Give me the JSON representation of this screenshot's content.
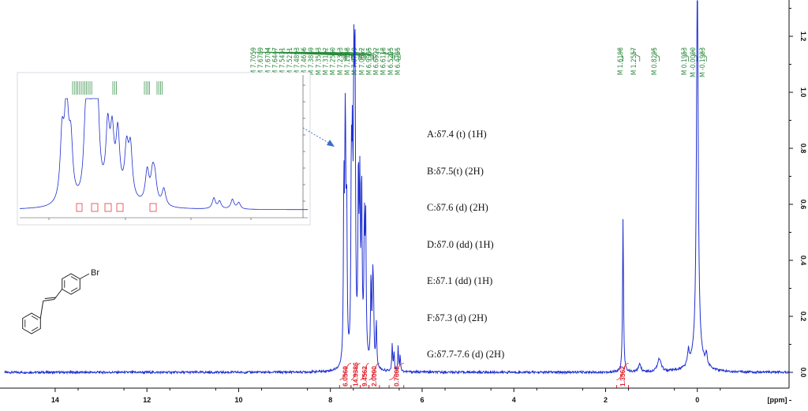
{
  "chart_data": {
    "type": "line",
    "x_unit_label": "[ppm]",
    "x_ticks": [
      "14",
      "12",
      "10",
      "8",
      "6",
      "4",
      "2",
      "0"
    ],
    "x_ticks_values": [
      14,
      12,
      10,
      8,
      6,
      4,
      2,
      0
    ],
    "xlim": [
      15.1,
      -2.0
    ],
    "y_ticks": [
      "1.2",
      "1.0",
      "0.8",
      "0.6",
      "0.4",
      "0.2",
      "0.0"
    ],
    "y_ticks_values": [
      1.2,
      1.0,
      0.8,
      0.6,
      0.4,
      0.2,
      0.0
    ],
    "ylim": [
      -0.06,
      1.3
    ],
    "peak_labels_aromatic": [
      {
        "text": "M 7.7059",
        "ppm": 7.7059
      },
      {
        "text": "M 7.6789",
        "ppm": 7.6789
      },
      {
        "text": "M 7.6704",
        "ppm": 7.6704
      },
      {
        "text": "M 7.6447",
        "ppm": 7.6447
      },
      {
        "text": "M 7.5431",
        "ppm": 7.5431
      },
      {
        "text": "M 7.5211",
        "ppm": 7.5211
      },
      {
        "text": "M 7.4893",
        "ppm": 7.4893
      },
      {
        "text": "M 7.4636",
        "ppm": 7.4636
      },
      {
        "text": "M 7.3889",
        "ppm": 7.3889
      },
      {
        "text": "M 7.3583",
        "ppm": 7.3583
      },
      {
        "text": "M 7.3192",
        "ppm": 7.3192
      },
      {
        "text": "M 7.2580",
        "ppm": 7.258
      },
      {
        "text": "M 7.2313",
        "ppm": 7.2313
      },
      {
        "text": "M 7.1148",
        "ppm": 7.1148
      },
      {
        "text": "M 7.0769",
        "ppm": 7.0769
      },
      {
        "text": "M 7.0612",
        "ppm": 7.0612
      },
      {
        "text": "M 6.9985",
        "ppm": 6.9985
      },
      {
        "text": "M 6.6522",
        "ppm": 6.6522
      },
      {
        "text": "M 6.6118",
        "ppm": 6.6118
      },
      {
        "text": "M 6.5225",
        "ppm": 6.5225
      },
      {
        "text": "M 6.4785",
        "ppm": 6.4785
      }
    ],
    "peak_labels_aliphatic": [
      {
        "text": "M 1.6198",
        "ppm": 1.6198
      },
      {
        "text": "M 1.2557",
        "ppm": 1.2557
      },
      {
        "text": "M 0.8295",
        "ppm": 0.8295
      },
      {
        "text": "M 0.1953",
        "ppm": 0.1953
      },
      {
        "text": "M -0.0000",
        "ppm": 0.0
      },
      {
        "text": "M -0.1983",
        "ppm": -0.1983
      }
    ],
    "integrals": [
      {
        "text": "6.0569",
        "from": 7.8,
        "to": 7.55
      },
      {
        "text": "14.9386",
        "from": 7.55,
        "to": 7.35
      },
      {
        "text": "9.4562",
        "from": 7.35,
        "to": 7.16
      },
      {
        "text": "2.0000",
        "from": 7.16,
        "to": 6.93
      },
      {
        "text": "0.7602",
        "from": 6.72,
        "to": 6.4
      },
      {
        "text": "1.3562",
        "from": 1.76,
        "to": 1.5
      }
    ],
    "spectrum_peaks": [
      {
        "ppm": 7.706,
        "h": 0.6,
        "w": 0.012
      },
      {
        "ppm": 7.679,
        "h": 0.54,
        "w": 0.012
      },
      {
        "ppm": 7.67,
        "h": 0.4,
        "w": 0.012
      },
      {
        "ppm": 7.645,
        "h": 0.52,
        "w": 0.012
      },
      {
        "ppm": 7.543,
        "h": 0.64,
        "w": 0.012
      },
      {
        "ppm": 7.521,
        "h": 0.6,
        "w": 0.012
      },
      {
        "ppm": 7.489,
        "h": 0.88,
        "w": 0.013
      },
      {
        "ppm": 7.464,
        "h": 1.0,
        "w": 0.013
      },
      {
        "ppm": 7.389,
        "h": 0.62,
        "w": 0.012
      },
      {
        "ppm": 7.358,
        "h": 0.55,
        "w": 0.012
      },
      {
        "ppm": 7.319,
        "h": 0.58,
        "w": 0.012
      },
      {
        "ppm": 7.258,
        "h": 0.44,
        "w": 0.012
      },
      {
        "ppm": 7.231,
        "h": 0.46,
        "w": 0.012
      },
      {
        "ppm": 7.115,
        "h": 0.3,
        "w": 0.012
      },
      {
        "ppm": 7.077,
        "h": 0.26,
        "w": 0.012
      },
      {
        "ppm": 7.061,
        "h": 0.2,
        "w": 0.012
      },
      {
        "ppm": 6.999,
        "h": 0.16,
        "w": 0.012
      },
      {
        "ppm": 6.652,
        "h": 0.1,
        "w": 0.01
      },
      {
        "ppm": 6.612,
        "h": 0.07,
        "w": 0.01
      },
      {
        "ppm": 6.523,
        "h": 0.09,
        "w": 0.01
      },
      {
        "ppm": 6.479,
        "h": 0.06,
        "w": 0.01
      },
      {
        "ppm": 7.3,
        "h": 0.06,
        "w": 0.1
      },
      {
        "ppm": 1.62,
        "h": 0.55,
        "w": 0.012
      },
      {
        "ppm": 1.256,
        "h": 0.03,
        "w": 0.03
      },
      {
        "ppm": 0.83,
        "h": 0.045,
        "w": 0.05
      },
      {
        "ppm": 0.195,
        "h": 0.05,
        "w": 0.02
      },
      {
        "ppm": 0.0,
        "h": 1.4,
        "w": 0.022
      },
      {
        "ppm": -0.198,
        "h": 0.04,
        "w": 0.02
      },
      {
        "ppm": 0.0,
        "h": 0.06,
        "w": 0.15
      }
    ]
  },
  "annotations": [
    "A:δ7.4 (t) (1H)",
    "B:δ7.5(t) (2H)",
    "C:δ7.6 (d) (2H)",
    "D:δ7.0 (dd) (1H)",
    "E:δ7.1 (dd) (1H)",
    "F:δ7.3 (d) (2H)",
    "G:δ7.7-7.6 (d) (2H)"
  ],
  "molecule": {
    "substituent_label": "Br"
  },
  "colors": {
    "spectrum": "#1f2fd0",
    "peak_label": "#2a8a3c",
    "integral": "#e0202a",
    "arrow": "#3a6ec8",
    "axis": "#111111"
  }
}
